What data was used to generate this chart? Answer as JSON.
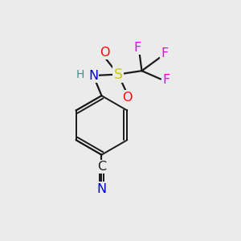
{
  "background_color": "#ebebeb",
  "bond_color": "#1a1a1a",
  "atom_colors": {
    "N": "#0000cc",
    "H": "#4a8a8a",
    "S": "#cccc00",
    "O": "#ff0000",
    "F": "#ee00ee",
    "C": "#1a1a1a",
    "CN_N": "#0000cc"
  },
  "figsize": [
    3.0,
    3.0
  ],
  "dpi": 100
}
